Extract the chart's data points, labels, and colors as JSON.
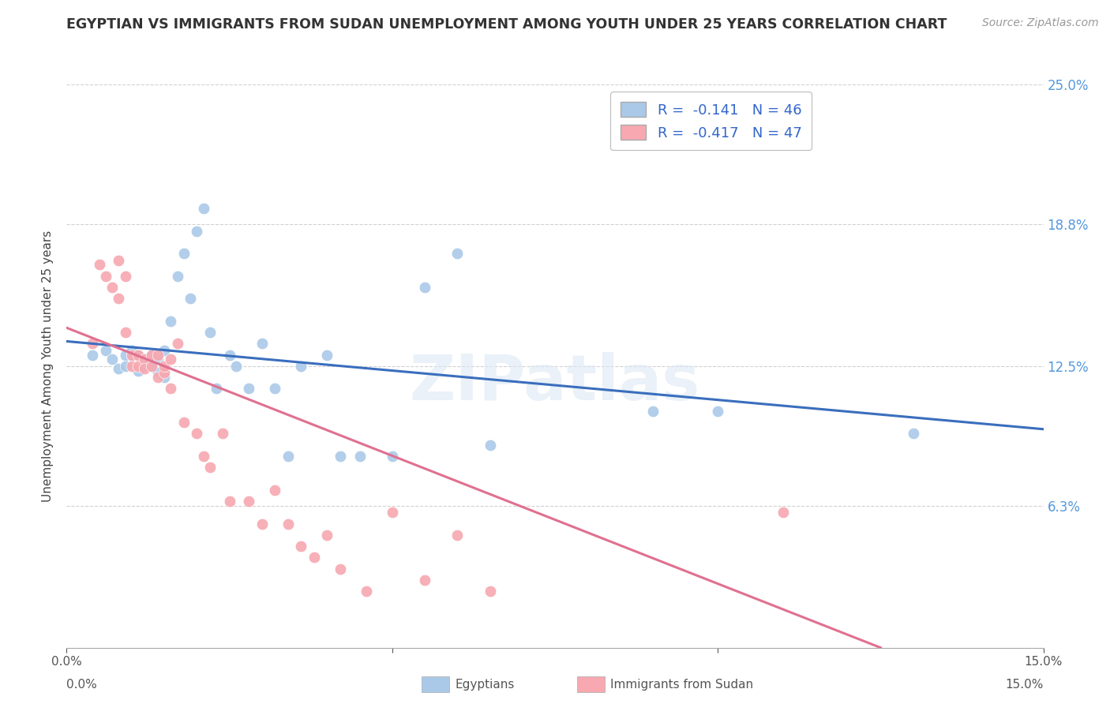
{
  "title": "EGYPTIAN VS IMMIGRANTS FROM SUDAN UNEMPLOYMENT AMONG YOUTH UNDER 25 YEARS CORRELATION CHART",
  "source": "Source: ZipAtlas.com",
  "ylabel": "Unemployment Among Youth under 25 years",
  "legend": {
    "blue_R": "-0.141",
    "blue_N": "46",
    "pink_R": "-0.417",
    "pink_N": "47",
    "label_blue": "Egyptians",
    "label_pink": "Immigrants from Sudan"
  },
  "watermark": "ZIPatlas",
  "blue_color": "#aac9e8",
  "pink_color": "#f7a8b0",
  "blue_line_color": "#3a6ebd",
  "pink_line_color": "#e07090",
  "background_color": "#ffffff",
  "grid_color": "#cccccc",
  "x_range": [
    0.0,
    0.15
  ],
  "y_range": [
    0.0,
    0.25
  ],
  "x_ticks": [
    0.0,
    0.05,
    0.1,
    0.15
  ],
  "x_tick_labels": [
    "0.0%",
    "",
    "",
    "15.0%"
  ],
  "y_ticks": [
    0.0,
    0.063,
    0.125,
    0.188,
    0.25
  ],
  "y_tick_labels_right": [
    "",
    "6.3%",
    "12.5%",
    "18.8%",
    "25.0%"
  ],
  "blue_scatter_x": [
    0.004,
    0.006,
    0.007,
    0.008,
    0.009,
    0.009,
    0.01,
    0.01,
    0.011,
    0.011,
    0.012,
    0.012,
    0.013,
    0.013,
    0.014,
    0.014,
    0.015,
    0.015,
    0.016,
    0.017,
    0.018,
    0.019,
    0.02,
    0.021,
    0.022,
    0.023,
    0.025,
    0.026,
    0.028,
    0.03,
    0.032,
    0.034,
    0.036,
    0.04,
    0.042,
    0.045,
    0.05,
    0.055,
    0.06,
    0.065,
    0.09,
    0.1,
    0.13
  ],
  "blue_scatter_y": [
    0.13,
    0.132,
    0.128,
    0.124,
    0.13,
    0.125,
    0.13,
    0.132,
    0.123,
    0.13,
    0.125,
    0.128,
    0.13,
    0.125,
    0.122,
    0.128,
    0.12,
    0.132,
    0.145,
    0.165,
    0.175,
    0.155,
    0.185,
    0.195,
    0.14,
    0.115,
    0.13,
    0.125,
    0.115,
    0.135,
    0.115,
    0.085,
    0.125,
    0.13,
    0.085,
    0.085,
    0.085,
    0.16,
    0.175,
    0.09,
    0.105,
    0.105,
    0.095
  ],
  "pink_scatter_x": [
    0.004,
    0.005,
    0.006,
    0.007,
    0.008,
    0.008,
    0.009,
    0.009,
    0.01,
    0.01,
    0.011,
    0.011,
    0.012,
    0.012,
    0.013,
    0.013,
    0.014,
    0.014,
    0.015,
    0.015,
    0.016,
    0.016,
    0.017,
    0.018,
    0.02,
    0.021,
    0.022,
    0.024,
    0.025,
    0.028,
    0.03,
    0.032,
    0.034,
    0.036,
    0.038,
    0.04,
    0.042,
    0.046,
    0.05,
    0.055,
    0.06,
    0.065,
    0.11
  ],
  "pink_scatter_y": [
    0.135,
    0.17,
    0.165,
    0.16,
    0.172,
    0.155,
    0.165,
    0.14,
    0.13,
    0.125,
    0.13,
    0.125,
    0.128,
    0.124,
    0.13,
    0.125,
    0.12,
    0.13,
    0.122,
    0.125,
    0.128,
    0.115,
    0.135,
    0.1,
    0.095,
    0.085,
    0.08,
    0.095,
    0.065,
    0.065,
    0.055,
    0.07,
    0.055,
    0.045,
    0.04,
    0.05,
    0.035,
    0.025,
    0.06,
    0.03,
    0.05,
    0.025,
    0.06
  ],
  "blue_line_x": [
    0.0,
    0.15
  ],
  "blue_line_y_start": 0.136,
  "blue_line_y_end": 0.097,
  "pink_line_x": [
    0.0,
    0.125
  ],
  "pink_line_y_start": 0.142,
  "pink_line_y_end": 0.0
}
